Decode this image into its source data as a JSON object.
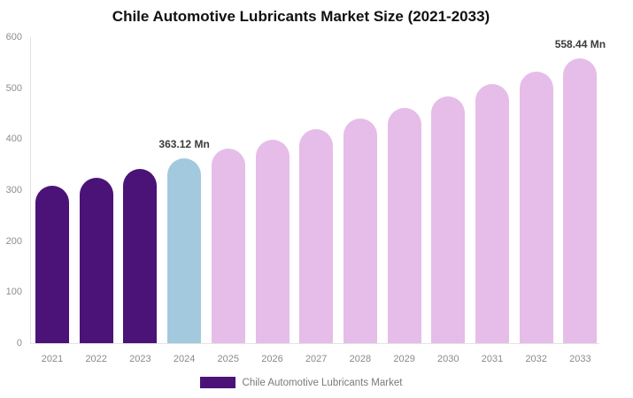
{
  "title": "Chile Automotive Lubricants Market Size (2021-2033)",
  "legend": {
    "label": "Chile Automotive Lubricants Market"
  },
  "chart_data": {
    "type": "bar",
    "title": "Chile Automotive Lubricants Market Size (2021-2033)",
    "unit": "Mn",
    "categories": [
      "2021",
      "2022",
      "2023",
      "2024",
      "2025",
      "2026",
      "2027",
      "2028",
      "2029",
      "2030",
      "2031",
      "2032",
      "2033"
    ],
    "values": [
      308,
      325,
      342,
      363.12,
      380.9,
      399.5,
      419.1,
      439.6,
      461.1,
      483.7,
      507.3,
      532.1,
      558.44
    ],
    "bar_color_groups": [
      "historical",
      "historical",
      "historical",
      "base_year",
      "forecast",
      "forecast",
      "forecast",
      "forecast",
      "forecast",
      "forecast",
      "forecast",
      "forecast",
      "forecast"
    ],
    "annotations": [
      {
        "category": "2024",
        "text": "363.12 Mn"
      },
      {
        "category": "2033",
        "text": "558.44 Mn"
      }
    ],
    "xlabel": "",
    "ylabel": "",
    "ylim": [
      0,
      600
    ],
    "yticks": [
      0,
      100,
      200,
      300,
      400,
      500,
      600
    ],
    "grid": false,
    "legend_position": "bottom",
    "colors": {
      "historical": "#4B1377",
      "base_year": "#A3C9DE",
      "forecast": "#E5BDE8",
      "axis_line": "#E3E3E3",
      "tick_text": "#8E8E8E",
      "data_label_text": "#3B3B3B",
      "legend_text": "#7A7A7A",
      "title_text": "#111111"
    }
  }
}
